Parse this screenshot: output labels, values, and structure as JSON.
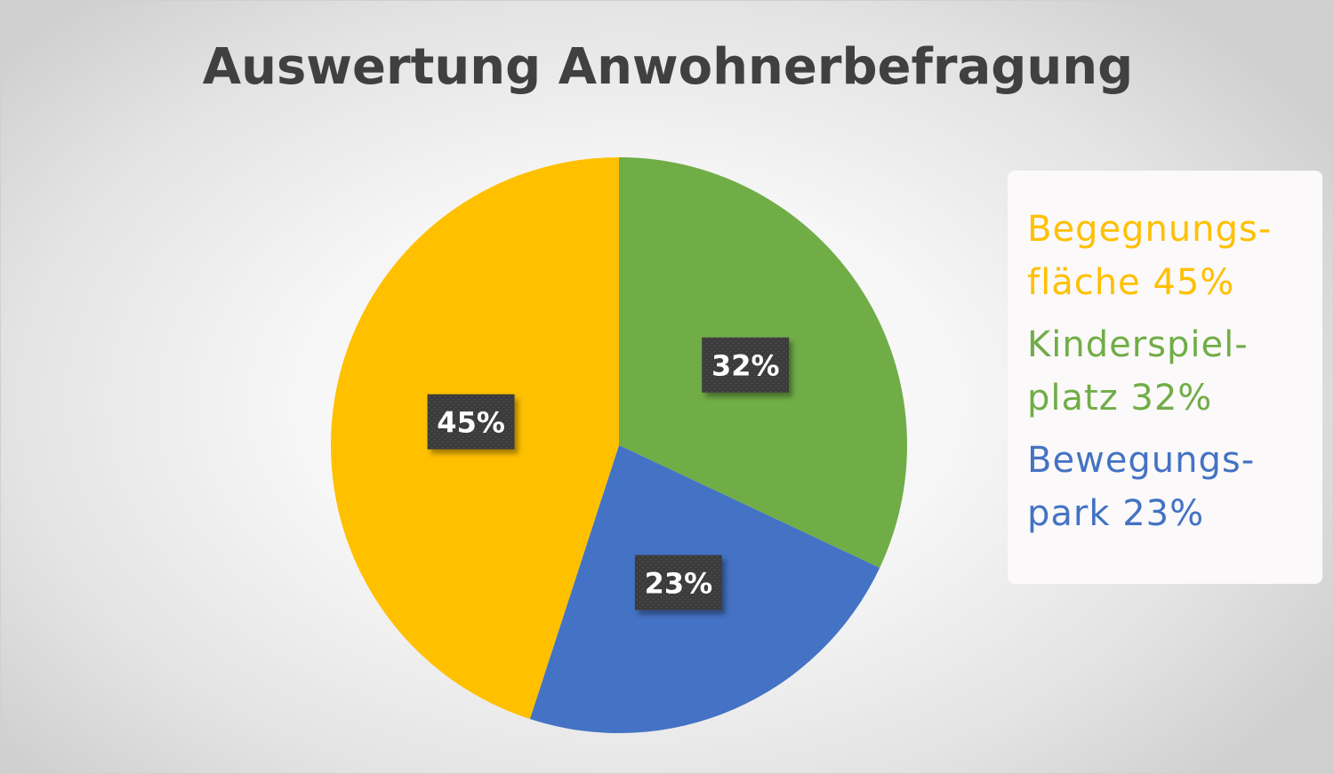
{
  "chart_data": {
    "type": "pie",
    "title": "Auswertung Anwohnerbefragung",
    "slices": [
      {
        "name": "Kinderspielplatz",
        "value": 32,
        "label": "32%",
        "color": "#70ad47"
      },
      {
        "name": "Bewegungspark",
        "value": 23,
        "label": "23%",
        "color": "#4472c4"
      },
      {
        "name": "Begegnungsfläche",
        "value": 45,
        "label": "45%",
        "color": "#ffc000"
      }
    ],
    "legend_placement": "right",
    "legend": [
      {
        "lines": [
          "Begegnungs-",
          "fläche 45%"
        ],
        "color": "#ffc000"
      },
      {
        "lines": [
          "Kinderspiel-",
          "platz 32%"
        ],
        "color": "#70ad47"
      },
      {
        "lines": [
          "Bewegungs-",
          "park 23%"
        ],
        "color": "#4472c4"
      }
    ]
  }
}
